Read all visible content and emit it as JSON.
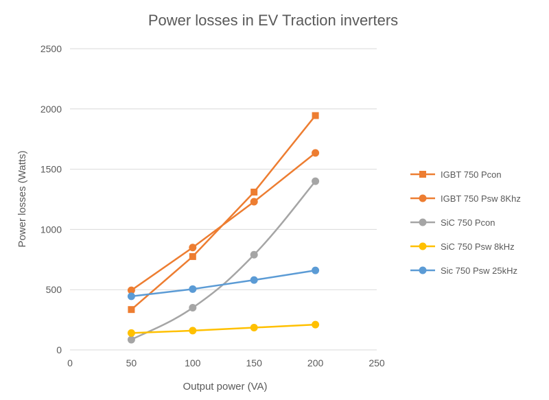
{
  "chart_data": {
    "type": "line",
    "title": "Power losses in EV Traction inverters",
    "xlabel": "Output power (VA)",
    "ylabel": "Power losses (Watts)",
    "xlim": [
      0,
      250
    ],
    "ylim": [
      0,
      2500
    ],
    "xticks": [
      0,
      50,
      100,
      150,
      200,
      250
    ],
    "yticks": [
      0,
      500,
      1000,
      1500,
      2000,
      2500
    ],
    "grid": true,
    "legend_position": "right",
    "x": [
      50,
      100,
      150,
      200
    ],
    "series": [
      {
        "name": "IGBT 750 Pcon",
        "values": [
          335,
          775,
          1310,
          1945
        ],
        "color": "#ed7d31",
        "marker": "square",
        "smooth": false
      },
      {
        "name": "IGBT 750 Psw 8Khz",
        "values": [
          495,
          850,
          1230,
          1635
        ],
        "color": "#ed7d31",
        "marker": "circle",
        "smooth": false
      },
      {
        "name": "SiC 750 Pcon",
        "values": [
          85,
          350,
          790,
          1400
        ],
        "color": "#a5a5a5",
        "marker": "circle",
        "smooth": true
      },
      {
        "name": "SiC 750 Psw 8kHz",
        "values": [
          140,
          160,
          185,
          210
        ],
        "color": "#ffc000",
        "marker": "circle",
        "smooth": false
      },
      {
        "name": "Sic 750 Psw 25kHz",
        "values": [
          445,
          505,
          580,
          660
        ],
        "color": "#5b9bd5",
        "marker": "circle",
        "smooth": false
      }
    ]
  }
}
